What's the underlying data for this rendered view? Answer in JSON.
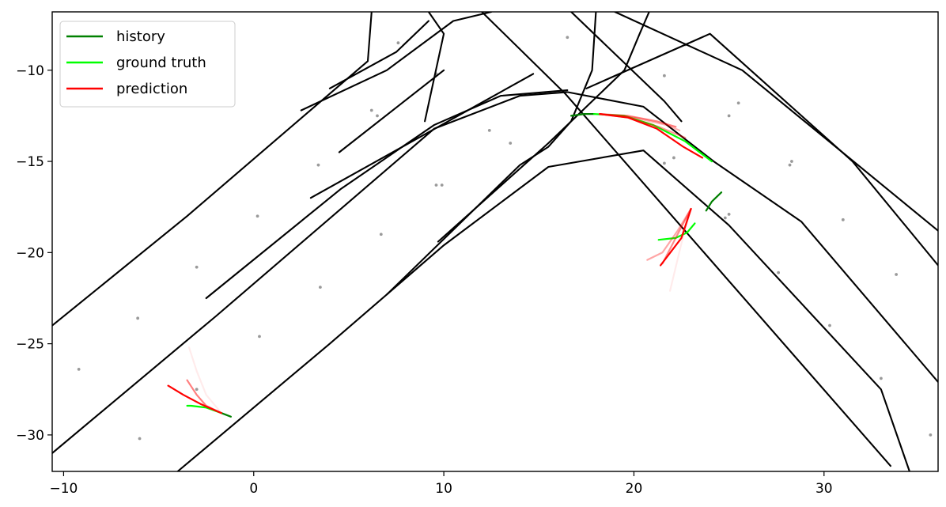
{
  "chart_data": {
    "type": "line",
    "title": "",
    "xlabel": "",
    "ylabel": "",
    "xlim": [
      -10.6,
      36.0
    ],
    "ylim": [
      -32.0,
      -6.8
    ],
    "grid": false,
    "legend_placement": "top-left",
    "x_ticks": [
      -10,
      0,
      10,
      20,
      30
    ],
    "y_ticks": [
      -10,
      -15,
      -20,
      -25,
      -30
    ],
    "x_tick_labels": [
      "−10",
      "0",
      "10",
      "20",
      "30"
    ],
    "y_tick_labels": [
      "−10",
      "−15",
      "−20",
      "−25",
      "−30"
    ],
    "legend": [
      {
        "name": "history",
        "color": "#008000"
      },
      {
        "name": "ground truth",
        "color": "#00ff00"
      },
      {
        "name": "prediction",
        "color": "#ff0000"
      }
    ],
    "road_color": "#000000",
    "road_lines": [
      [
        [
          -10.6,
          -24.0
        ],
        [
          -3.5,
          -18.0
        ],
        [
          3.2,
          -12.0
        ],
        [
          6.0,
          -9.5
        ],
        [
          6.2,
          -6.8
        ]
      ],
      [
        [
          -10.6,
          -31.0
        ],
        [
          -2.0,
          -23.5
        ],
        [
          9.5,
          -13.2
        ],
        [
          14.0,
          -11.4
        ],
        [
          16.5,
          -11.2
        ],
        [
          20.5,
          -12.0
        ],
        [
          24.2,
          -15.0
        ],
        [
          28.8,
          -18.3
        ],
        [
          36.0,
          -27.1
        ]
      ],
      [
        [
          -4.0,
          -32.0
        ],
        [
          4.0,
          -25.0
        ],
        [
          10.0,
          -19.6
        ],
        [
          15.5,
          -15.3
        ],
        [
          20.5,
          -14.4
        ],
        [
          25.0,
          -18.5
        ],
        [
          33.0,
          -27.5
        ],
        [
          34.5,
          -32.0
        ]
      ],
      [
        [
          12.0,
          -6.8
        ],
        [
          16.4,
          -11.3
        ],
        [
          33.5,
          -31.7
        ]
      ],
      [
        [
          -2.5,
          -22.5
        ],
        [
          4.6,
          -16.5
        ],
        [
          9.5,
          -13.0
        ],
        [
          13.0,
          -11.4
        ],
        [
          16.5,
          -11.1
        ]
      ],
      [
        [
          2.5,
          -12.2
        ],
        [
          7.0,
          -10.0
        ],
        [
          10.5,
          -7.3
        ],
        [
          12.5,
          -6.8
        ]
      ],
      [
        [
          4.0,
          -11.0
        ],
        [
          7.5,
          -9.0
        ],
        [
          9.2,
          -7.3
        ]
      ],
      [
        [
          9.0,
          -12.8
        ],
        [
          10.0,
          -8.0
        ],
        [
          9.2,
          -6.8
        ]
      ],
      [
        [
          4.5,
          -14.5
        ],
        [
          10.0,
          -10.0
        ]
      ],
      [
        [
          3.0,
          -17.0
        ],
        [
          14.7,
          -10.2
        ]
      ],
      [
        [
          17.5,
          -11.0
        ],
        [
          24.0,
          -8.0
        ],
        [
          31.5,
          -15.0
        ],
        [
          36.0,
          -20.7
        ]
      ],
      [
        [
          19.0,
          -6.8
        ],
        [
          25.7,
          -10.0
        ],
        [
          36.0,
          -18.8
        ]
      ],
      [
        [
          16.7,
          -6.8
        ],
        [
          21.6,
          -11.7
        ],
        [
          22.5,
          -12.8
        ]
      ],
      [
        [
          9.7,
          -19.4
        ],
        [
          15.5,
          -14.0
        ],
        [
          17.4,
          -12.1
        ],
        [
          19.5,
          -10.0
        ],
        [
          20.3,
          -8.0
        ],
        [
          20.8,
          -6.8
        ]
      ],
      [
        [
          7.0,
          -22.3
        ],
        [
          14.0,
          -15.2
        ],
        [
          15.5,
          -14.2
        ],
        [
          16.7,
          -12.8
        ],
        [
          17.8,
          -10.0
        ],
        [
          18.0,
          -6.8
        ]
      ]
    ],
    "map_points": [
      [
        -9.2,
        -26.4
      ],
      [
        -6.1,
        -23.6
      ],
      [
        -6.0,
        -30.2
      ],
      [
        -3.0,
        -27.5
      ],
      [
        -3.0,
        -20.8
      ],
      [
        0.2,
        -18.0
      ],
      [
        0.3,
        -24.6
      ],
      [
        3.4,
        -15.2
      ],
      [
        3.5,
        -21.9
      ],
      [
        6.2,
        -12.2
      ],
      [
        6.5,
        -12.5
      ],
      [
        6.7,
        -19.0
      ],
      [
        7.6,
        -8.5
      ],
      [
        9.6,
        -10.2
      ],
      [
        9.6,
        -16.3
      ],
      [
        9.9,
        -16.3
      ],
      [
        12.4,
        -13.3
      ],
      [
        13.5,
        -14.0
      ],
      [
        16.5,
        -8.2
      ],
      [
        21.6,
        -10.3
      ],
      [
        21.6,
        -15.1
      ],
      [
        22.1,
        -14.8
      ],
      [
        22.7,
        -8.6
      ],
      [
        24.8,
        -18.1
      ],
      [
        25.0,
        -17.9
      ],
      [
        25.0,
        -12.5
      ],
      [
        25.5,
        -11.8
      ],
      [
        27.6,
        -21.1
      ],
      [
        28.2,
        -15.2
      ],
      [
        28.3,
        -15.0
      ],
      [
        30.3,
        -24.0
      ],
      [
        31.0,
        -18.2
      ],
      [
        33.0,
        -26.9
      ],
      [
        33.8,
        -21.2
      ],
      [
        35.6,
        -30.0
      ]
    ],
    "series": [
      {
        "name": "history",
        "color": "#008000",
        "width": 2.2,
        "alpha": 1.0,
        "points": [
          [
            -1.2,
            -29.0
          ],
          [
            -1.7,
            -28.8
          ]
        ]
      },
      {
        "name": "ground truth",
        "color": "#00ff00",
        "width": 2.2,
        "alpha": 1.0,
        "points": [
          [
            -1.7,
            -28.8
          ],
          [
            -2.5,
            -28.5
          ],
          [
            -3.3,
            -28.4
          ],
          [
            -3.5,
            -28.4
          ]
        ]
      },
      {
        "name": "prediction",
        "color": "#ff0000",
        "width": 2.2,
        "alpha": 0.5,
        "points": [
          [
            -1.7,
            -28.8
          ],
          [
            -2.5,
            -28.4
          ],
          [
            -3.0,
            -27.8
          ],
          [
            -3.5,
            -27.0
          ]
        ]
      },
      {
        "name": "prediction",
        "color": "#ff0000",
        "width": 2.2,
        "alpha": 0.08,
        "points": [
          [
            -1.7,
            -28.8
          ],
          [
            -2.5,
            -27.8
          ],
          [
            -3.0,
            -26.5
          ],
          [
            -3.4,
            -25.2
          ]
        ]
      },
      {
        "name": "prediction",
        "color": "#ff0000",
        "width": 2.2,
        "alpha": 1.0,
        "points": [
          [
            -1.7,
            -28.8
          ],
          [
            -2.8,
            -28.3
          ],
          [
            -3.7,
            -27.8
          ],
          [
            -4.5,
            -27.3
          ]
        ]
      },
      {
        "name": "history",
        "color": "#008000",
        "width": 2.2,
        "alpha": 1.0,
        "points": [
          [
            16.7,
            -12.5
          ],
          [
            17.4,
            -12.4
          ],
          [
            17.9,
            -12.4
          ]
        ]
      },
      {
        "name": "ground truth",
        "color": "#00ff00",
        "width": 2.2,
        "alpha": 1.0,
        "points": [
          [
            17.9,
            -12.4
          ],
          [
            19.5,
            -12.5
          ],
          [
            21.0,
            -13.0
          ],
          [
            22.7,
            -13.9
          ],
          [
            24.1,
            -15.0
          ]
        ]
      },
      {
        "name": "prediction",
        "color": "#ff0000",
        "width": 2.2,
        "alpha": 0.5,
        "points": [
          [
            18.2,
            -12.4
          ],
          [
            19.7,
            -12.5
          ],
          [
            21.2,
            -12.8
          ],
          [
            22.2,
            -13.1
          ]
        ]
      },
      {
        "name": "prediction",
        "color": "#ff0000",
        "width": 2.2,
        "alpha": 0.4,
        "points": [
          [
            18.2,
            -12.4
          ],
          [
            19.7,
            -12.6
          ],
          [
            21.3,
            -13.1
          ],
          [
            22.7,
            -13.7
          ]
        ]
      },
      {
        "name": "prediction",
        "color": "#ff0000",
        "width": 2.2,
        "alpha": 0.3,
        "points": [
          [
            18.2,
            -12.4
          ],
          [
            20.0,
            -12.6
          ],
          [
            21.7,
            -13.0
          ],
          [
            22.4,
            -13.3
          ]
        ]
      },
      {
        "name": "prediction",
        "color": "#ff0000",
        "width": 2.2,
        "alpha": 1.0,
        "points": [
          [
            18.2,
            -12.4
          ],
          [
            19.7,
            -12.6
          ],
          [
            21.2,
            -13.2
          ],
          [
            22.6,
            -14.2
          ],
          [
            23.6,
            -14.8
          ]
        ]
      },
      {
        "name": "history",
        "color": "#008000",
        "width": 2.2,
        "alpha": 1.0,
        "points": [
          [
            24.6,
            -16.7
          ],
          [
            24.1,
            -17.2
          ],
          [
            23.8,
            -17.7
          ]
        ]
      },
      {
        "name": "ground truth",
        "color": "#00ff00",
        "width": 2.2,
        "alpha": 1.0,
        "points": [
          [
            23.2,
            -18.4
          ],
          [
            22.8,
            -18.9
          ],
          [
            22.2,
            -19.2
          ],
          [
            21.3,
            -19.3
          ]
        ]
      },
      {
        "name": "prediction",
        "color": "#ff0000",
        "width": 2.2,
        "alpha": 0.35,
        "points": [
          [
            23.0,
            -17.6
          ],
          [
            22.3,
            -18.8
          ],
          [
            21.5,
            -20.0
          ],
          [
            20.7,
            -20.4
          ]
        ]
      },
      {
        "name": "prediction",
        "color": "#ff0000",
        "width": 2.2,
        "alpha": 0.45,
        "points": [
          [
            23.0,
            -17.6
          ],
          [
            22.2,
            -19.2
          ],
          [
            21.5,
            -20.6
          ]
        ]
      },
      {
        "name": "prediction",
        "color": "#ff0000",
        "width": 2.2,
        "alpha": 0.08,
        "points": [
          [
            23.0,
            -17.6
          ],
          [
            22.5,
            -19.5
          ],
          [
            21.9,
            -22.1
          ]
        ]
      },
      {
        "name": "prediction",
        "color": "#ff0000",
        "width": 2.2,
        "alpha": 1.0,
        "points": [
          [
            23.0,
            -17.6
          ],
          [
            22.5,
            -19.2
          ],
          [
            21.4,
            -20.7
          ]
        ]
      }
    ]
  }
}
